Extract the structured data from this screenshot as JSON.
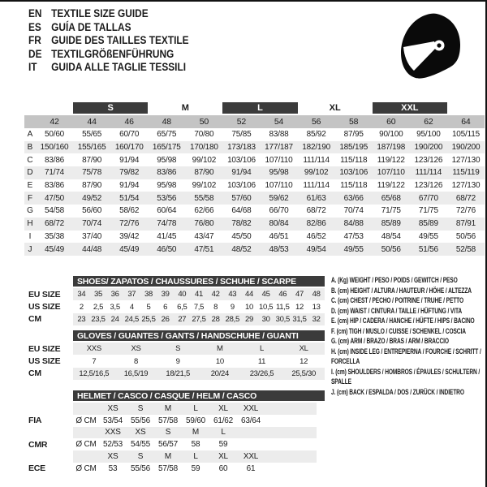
{
  "header": {
    "languages": [
      {
        "code": "EN",
        "title": "TEXTILE SIZE GUIDE"
      },
      {
        "code": "ES",
        "title": "GUÍA DE TALLAS"
      },
      {
        "code": "FR",
        "title": "GUIDE DES TAILLES TEXTILE"
      },
      {
        "code": "DE",
        "title": "TEXTILGRÖßENFÜHRUNG"
      },
      {
        "code": "IT",
        "title": "GUIDA ALLE TAGLIE TESSILI"
      }
    ],
    "helmet_icon": "full-face-helmet-icon"
  },
  "colors": {
    "dark_bar": "#3b3b3b",
    "size_header_bg": "#c4c4c4",
    "alt_row_bg": "#ececec",
    "text": "#1c1c1c",
    "text_on_dark": "#ffffff"
  },
  "textile_table": {
    "size_groups": [
      {
        "label": "S",
        "style": "dark"
      },
      {
        "label": "M",
        "style": "plain"
      },
      {
        "label": "L",
        "style": "dark"
      },
      {
        "label": "XL",
        "style": "plain"
      },
      {
        "label": "XXL",
        "style": "dark"
      }
    ],
    "sizes": [
      "42",
      "44",
      "46",
      "48",
      "50",
      "52",
      "54",
      "56",
      "58",
      "60",
      "62",
      "64"
    ],
    "rows": [
      {
        "letter": "A",
        "values": [
          "50/60",
          "55/65",
          "60/70",
          "65/75",
          "70/80",
          "75/85",
          "83/88",
          "85/92",
          "87/95",
          "90/100",
          "95/100",
          "105/115"
        ]
      },
      {
        "letter": "B",
        "values": [
          "150/160",
          "155/165",
          "160/170",
          "165/175",
          "170/180",
          "173/183",
          "177/187",
          "182/190",
          "185/195",
          "187/198",
          "190/200",
          "190/200"
        ]
      },
      {
        "letter": "C",
        "values": [
          "83/86",
          "87/90",
          "91/94",
          "95/98",
          "99/102",
          "103/106",
          "107/110",
          "111/114",
          "115/118",
          "119/122",
          "123/126",
          "127/130"
        ]
      },
      {
        "letter": "D",
        "values": [
          "71/74",
          "75/78",
          "79/82",
          "83/86",
          "87/90",
          "91/94",
          "95/98",
          "99/102",
          "103/106",
          "107/110",
          "111/114",
          "115/119"
        ]
      },
      {
        "letter": "E",
        "values": [
          "83/86",
          "87/90",
          "91/94",
          "95/98",
          "99/102",
          "103/106",
          "107/110",
          "111/114",
          "115/118",
          "119/122",
          "123/126",
          "127/130"
        ]
      },
      {
        "letter": "F",
        "values": [
          "47/50",
          "49/52",
          "51/54",
          "53/56",
          "55/58",
          "57/60",
          "59/62",
          "61/63",
          "63/66",
          "65/68",
          "67/70",
          "68/72"
        ]
      },
      {
        "letter": "G",
        "values": [
          "54/58",
          "56/60",
          "58/62",
          "60/64",
          "62/66",
          "64/68",
          "66/70",
          "68/72",
          "70/74",
          "71/75",
          "71/75",
          "72/76"
        ]
      },
      {
        "letter": "H",
        "values": [
          "68/72",
          "70/74",
          "72/76",
          "74/78",
          "76/80",
          "78/82",
          "80/84",
          "82/86",
          "84/88",
          "85/89",
          "85/89",
          "87/91"
        ]
      },
      {
        "letter": "I",
        "values": [
          "35/38",
          "37/40",
          "39/42",
          "41/45",
          "43/47",
          "45/50",
          "46/51",
          "46/52",
          "47/53",
          "48/54",
          "49/55",
          "50/56"
        ]
      },
      {
        "letter": "J",
        "values": [
          "45/49",
          "44/48",
          "45/49",
          "46/50",
          "47/51",
          "48/52",
          "48/53",
          "49/54",
          "49/55",
          "50/56",
          "51/56",
          "52/58"
        ]
      }
    ]
  },
  "shoes_table": {
    "title": "SHOES/ ZAPATOS / CHAUSSURES / SCHUHE / SCARPE",
    "rows": [
      {
        "label": "EU SIZE",
        "shaded": true,
        "values": [
          "34",
          "35",
          "36",
          "37",
          "38",
          "39",
          "40",
          "41",
          "42",
          "43",
          "44",
          "45",
          "46",
          "47",
          "48"
        ]
      },
      {
        "label": "US SIZE",
        "shaded": false,
        "values": [
          "2",
          "2,5",
          "3,5",
          "4",
          "5",
          "6",
          "6,5",
          "7,5",
          "8",
          "9",
          "10",
          "10,5",
          "11,5",
          "12",
          "13"
        ]
      },
      {
        "label": "CM",
        "shaded": true,
        "values": [
          "23",
          "23,5",
          "24",
          "24,5",
          "25,5",
          "26",
          "27",
          "27,5",
          "28",
          "28,5",
          "29",
          "30",
          "30,5",
          "31,5",
          "32"
        ]
      }
    ]
  },
  "gloves_table": {
    "title": "GLOVES / GUANTES / GANTS / HANDSCHUHE / GUANTI",
    "rows": [
      {
        "label": "EU SIZE",
        "shaded": true,
        "values": [
          "XXS",
          "XS",
          "S",
          "M",
          "L",
          "XL"
        ]
      },
      {
        "label": "US SIZE",
        "shaded": false,
        "values": [
          "7",
          "8",
          "9",
          "10",
          "11",
          "12"
        ]
      },
      {
        "label": "CM",
        "shaded": true,
        "values": [
          "12,5/16,5",
          "16,5/19",
          "18/21,5",
          "20/24",
          "23/26,5",
          "25,5/30"
        ]
      }
    ]
  },
  "helmet_table": {
    "title": "HELMET / CASCO / CASQUE / HELM / CASCO",
    "rows": [
      {
        "label": "",
        "unit": "",
        "shaded": true,
        "values": [
          "XS",
          "S",
          "M",
          "L",
          "XL",
          "XXL"
        ]
      },
      {
        "label": "FIA",
        "unit": "Ø CM",
        "shaded": false,
        "values": [
          "53/54",
          "55/56",
          "57/58",
          "59/60",
          "61/62",
          "63/64"
        ]
      },
      {
        "label": "",
        "unit": "",
        "shaded": true,
        "values": [
          "XXS",
          "XS",
          "S",
          "M",
          "L",
          ""
        ]
      },
      {
        "label": "CMR",
        "unit": "Ø CM",
        "shaded": false,
        "values": [
          "52/53",
          "54/55",
          "56/57",
          "58",
          "59",
          ""
        ]
      },
      {
        "label": "",
        "unit": "",
        "shaded": true,
        "values": [
          "XS",
          "S",
          "M",
          "L",
          "XL",
          "XXL"
        ]
      },
      {
        "label": "ECE",
        "unit": "Ø CM",
        "shaded": false,
        "values": [
          "53",
          "55/56",
          "57/58",
          "59",
          "60",
          "61"
        ]
      }
    ]
  },
  "legend": {
    "items": [
      "A. (Kg) WEIGHT / PESO / POIDS / GEWITCH / PESO",
      "B. (cm) HEIGHT / ALTURA / HAUTEUR / HÖHE / ALTEZZA",
      "C. (cm) CHEST / PECHO / POITRINE / TRUHE / PETTO",
      "D. (cm) WAIST / CINTURA / TAILLE / HÜFTUNG / VITA",
      "E. (cm) HIP / CADERA / HANCHE / HÜFTE / HIPS / BACINO",
      "F. (cm) TIGH / MUSLO / CUISSE / SCHENKEL / COSCIA",
      "G. (cm) ARM / BRAZO / BRAS / ARM / BRACCIO",
      "H. (cm) INSIDE LEG / ENTREPIERNA / FOURCHE / SCHRITT / FORCELLA",
      "I. (cm) SHOULDERS / HOMBROS / ÉPAULES / SCHULTERN / SPALLE",
      "J. (cm) BACK / ESPALDA / DOS / ZURÜCK / INDIETRO"
    ]
  }
}
